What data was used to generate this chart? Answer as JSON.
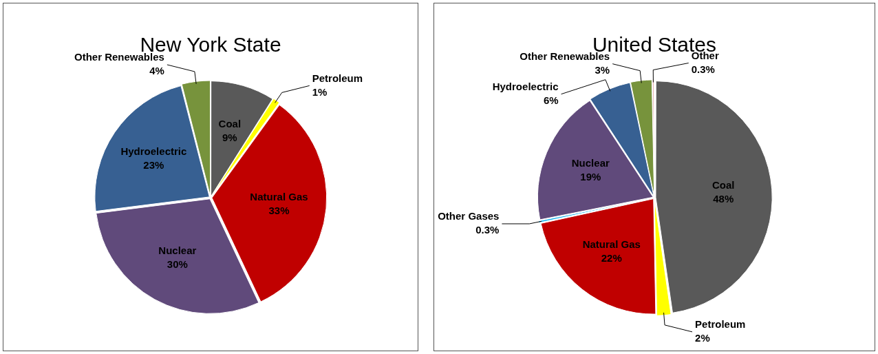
{
  "chart_data": [
    {
      "type": "pie",
      "title": "New York State",
      "categories": [
        "Coal",
        "Petroleum",
        "Natural Gas",
        "Nuclear",
        "Hydroelectric",
        "Other Renewables"
      ],
      "values": [
        9,
        1,
        33,
        30,
        23,
        4
      ],
      "value_labels": [
        "9%",
        "1%",
        "33%",
        "30%",
        "23%",
        "4%"
      ],
      "colors": [
        "#595959",
        "#ffff00",
        "#c00000",
        "#604a7b",
        "#376092",
        "#77933c"
      ],
      "legend": false
    },
    {
      "type": "pie",
      "title": "United States",
      "categories": [
        "Coal",
        "Petroleum",
        "Natural Gas",
        "Other Gases",
        "Nuclear",
        "Hydroelectric",
        "Other Renewables",
        "Other"
      ],
      "values": [
        48,
        2,
        22,
        0.3,
        19,
        6,
        3,
        0.3
      ],
      "value_labels": [
        "48%",
        "2%",
        "22%",
        "0.3%",
        "19%",
        "6%",
        "3%",
        "0.3%"
      ],
      "colors": [
        "#595959",
        "#ffff00",
        "#c00000",
        "#00b0f0",
        "#604a7b",
        "#376092",
        "#77933c",
        "#e6b9b8"
      ],
      "legend": false
    }
  ]
}
